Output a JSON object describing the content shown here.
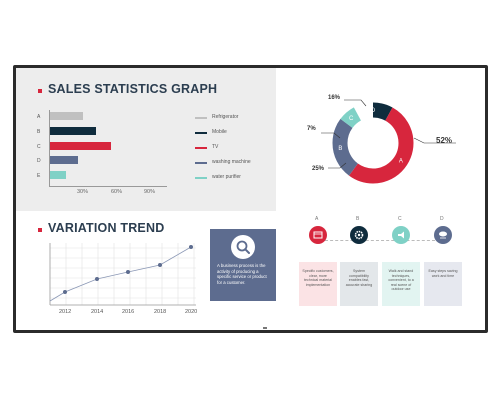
{
  "sales": {
    "title": "SALES STATISTICS GRAPH",
    "categories": [
      "A",
      "B",
      "C",
      "D",
      "E"
    ],
    "bars": [
      {
        "value": 30,
        "color": "#c0c0c0"
      },
      {
        "value": 41,
        "color": "#0f2c3d"
      },
      {
        "value": 55,
        "color": "#d7263d"
      },
      {
        "value": 25,
        "color": "#5d6c8f"
      },
      {
        "value": 14,
        "color": "#7fd1c6"
      }
    ],
    "ticks": [
      "30%",
      "60%",
      "90%"
    ],
    "legend": [
      {
        "label": "Refrigerator",
        "color": "#c0c0c0"
      },
      {
        "label": "Mobile",
        "color": "#0f2c3d"
      },
      {
        "label": "TV",
        "color": "#d7263d"
      },
      {
        "label": "washing machine",
        "color": "#5d6c8f"
      },
      {
        "label": "water purifier",
        "color": "#7fd1c6"
      }
    ]
  },
  "donut": {
    "slices": [
      {
        "label": "A",
        "percent": "52%",
        "value": 52,
        "color": "#d7263d"
      },
      {
        "label": "B",
        "percent": "25%",
        "value": 25,
        "color": "#5d6c8f"
      },
      {
        "label": "C",
        "percent": "7%",
        "value": 7,
        "color": "#7fd1c6"
      },
      {
        "label": "D",
        "percent": "16%",
        "value": 16,
        "color": "#0f2c3d"
      }
    ]
  },
  "trend": {
    "title": "VARIATION TREND",
    "years": [
      "2012",
      "2014",
      "2016",
      "2018",
      "2020"
    ]
  },
  "info": {
    "text": "A business process is the activity of producing a specific service or product for a customer."
  },
  "steps": [
    {
      "letter": "A",
      "icon": "calendar-icon",
      "color": "#d7263d",
      "card_color": "#fbe3e5",
      "text": "Specific customers, clear, more technical material implementation"
    },
    {
      "letter": "B",
      "icon": "gear-icon",
      "color": "#0f2c3d",
      "card_color": "#e3e7ea",
      "text": "System compatibility enables fast, accurate sharing"
    },
    {
      "letter": "C",
      "icon": "megaphone-icon",
      "color": "#7fd1c6",
      "card_color": "#e2f4f1",
      "text": "Walk and stand techniques, convenient, to a real scene of outdoor use"
    },
    {
      "letter": "D",
      "icon": "cloud-icon",
      "color": "#5d6c8f",
      "card_color": "#e6e8ef",
      "text": "Easy steps saving work and time"
    }
  ]
}
